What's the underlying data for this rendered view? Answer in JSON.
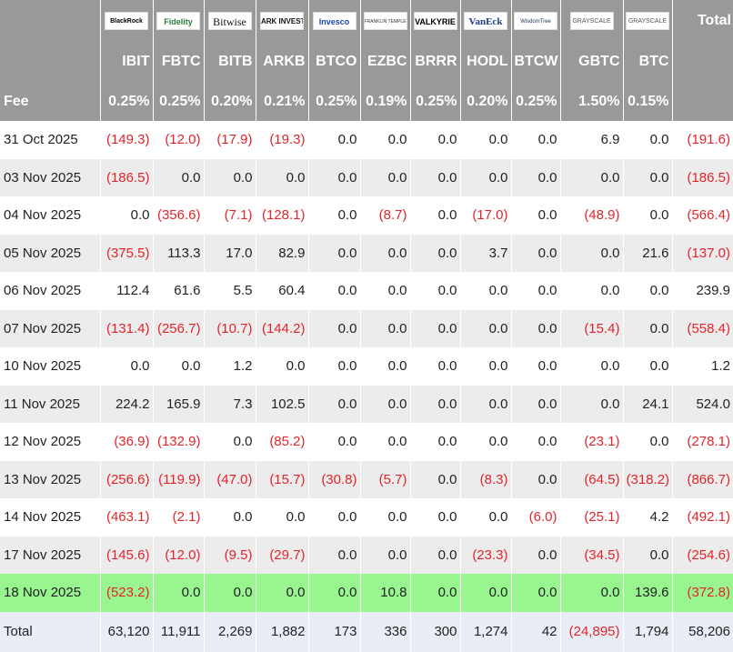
{
  "header": {
    "logos": [
      "BlackRock",
      "Fidelity",
      "Bitwise",
      "ARK INVEST",
      "Invesco",
      "FRANKLIN TEMPLETON",
      "VALKYRIE",
      "VanEck",
      "WisdomTree",
      "GRAYSCALE",
      "GRAYSCALE"
    ],
    "total_label": "Total",
    "tickers": [
      "IBIT",
      "FBTC",
      "BITB",
      "ARKB",
      "BTCO",
      "EZBC",
      "BRRR",
      "HODL",
      "BTCW",
      "GBTC",
      "BTC"
    ],
    "fee_label": "Fee",
    "fees": [
      "0.25%",
      "0.25%",
      "0.20%",
      "0.21%",
      "0.25%",
      "0.19%",
      "0.25%",
      "0.20%",
      "0.25%",
      "1.50%",
      "0.15%"
    ]
  },
  "table": {
    "rows": [
      [
        "31 Oct 2025",
        "(149.3)",
        "(12.0)",
        "(17.9)",
        "(19.3)",
        "0.0",
        "0.0",
        "0.0",
        "0.0",
        "0.0",
        "6.9",
        "0.0",
        "(191.6)"
      ],
      [
        "03 Nov 2025",
        "(186.5)",
        "0.0",
        "0.0",
        "0.0",
        "0.0",
        "0.0",
        "0.0",
        "0.0",
        "0.0",
        "0.0",
        "0.0",
        "(186.5)"
      ],
      [
        "04 Nov 2025",
        "0.0",
        "(356.6)",
        "(7.1)",
        "(128.1)",
        "0.0",
        "(8.7)",
        "0.0",
        "(17.0)",
        "0.0",
        "(48.9)",
        "0.0",
        "(566.4)"
      ],
      [
        "05 Nov 2025",
        "(375.5)",
        "113.3",
        "17.0",
        "82.9",
        "0.0",
        "0.0",
        "0.0",
        "3.7",
        "0.0",
        "0.0",
        "21.6",
        "(137.0)"
      ],
      [
        "06 Nov 2025",
        "112.4",
        "61.6",
        "5.5",
        "60.4",
        "0.0",
        "0.0",
        "0.0",
        "0.0",
        "0.0",
        "0.0",
        "0.0",
        "239.9"
      ],
      [
        "07 Nov 2025",
        "(131.4)",
        "(256.7)",
        "(10.7)",
        "(144.2)",
        "0.0",
        "0.0",
        "0.0",
        "0.0",
        "0.0",
        "(15.4)",
        "0.0",
        "(558.4)"
      ],
      [
        "10 Nov 2025",
        "0.0",
        "0.0",
        "1.2",
        "0.0",
        "0.0",
        "0.0",
        "0.0",
        "0.0",
        "0.0",
        "0.0",
        "0.0",
        "1.2"
      ],
      [
        "11 Nov 2025",
        "224.2",
        "165.9",
        "7.3",
        "102.5",
        "0.0",
        "0.0",
        "0.0",
        "0.0",
        "0.0",
        "0.0",
        "24.1",
        "524.0"
      ],
      [
        "12 Nov 2025",
        "(36.9)",
        "(132.9)",
        "0.0",
        "(85.2)",
        "0.0",
        "0.0",
        "0.0",
        "0.0",
        "0.0",
        "(23.1)",
        "0.0",
        "(278.1)"
      ],
      [
        "13 Nov 2025",
        "(256.6)",
        "(119.9)",
        "(47.0)",
        "(15.7)",
        "(30.8)",
        "(5.7)",
        "0.0",
        "(8.3)",
        "0.0",
        "(64.5)",
        "(318.2)",
        "(866.7)"
      ],
      [
        "14 Nov 2025",
        "(463.1)",
        "(2.1)",
        "0.0",
        "0.0",
        "0.0",
        "0.0",
        "0.0",
        "0.0",
        "(6.0)",
        "(25.1)",
        "4.2",
        "(492.1)"
      ],
      [
        "17 Nov 2025",
        "(145.6)",
        "(12.0)",
        "(9.5)",
        "(29.7)",
        "0.0",
        "0.0",
        "0.0",
        "(23.3)",
        "0.0",
        "(34.5)",
        "0.0",
        "(254.6)"
      ],
      [
        "18 Nov 2025",
        "(523.2)",
        "0.0",
        "0.0",
        "0.0",
        "0.0",
        "10.8",
        "0.0",
        "0.0",
        "0.0",
        "0.0",
        "139.6",
        "(372.8)"
      ]
    ],
    "total": [
      "Total",
      "63,120",
      "11,911",
      "2,269",
      "1,882",
      "173",
      "336",
      "300",
      "1,274",
      "42",
      "(24,895)",
      "1,794",
      "58,206"
    ]
  }
}
